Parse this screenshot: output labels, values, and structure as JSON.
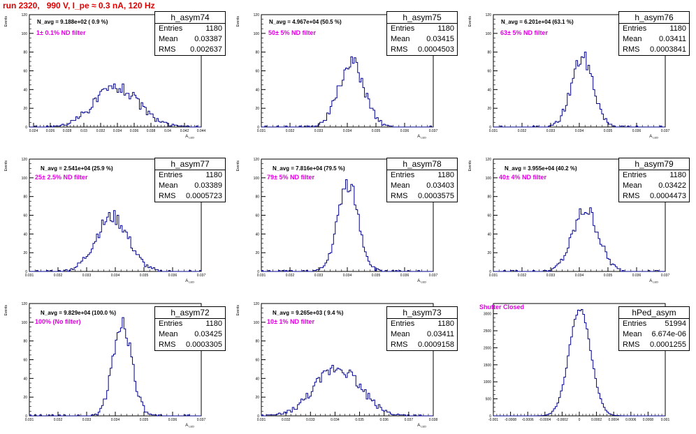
{
  "title": "run 2320,   990 V, I_pe ≈ 0.3 nA, 120 Hz",
  "chart_data": [
    {
      "type": "histogram",
      "name": "h_asym74",
      "stats": {
        "Entries": "1180",
        "Mean": "0.03387",
        "RMS": "0.002637"
      },
      "n_avg": "N_avg = 9.188e+02 ( 0.9 %)",
      "filter": "1± 0.1% ND filter",
      "ylabel": "Events",
      "xlabel": "A_LED",
      "xlim": [
        0.0235,
        0.044
      ],
      "ylim": [
        0,
        120
      ],
      "yticks": [
        0,
        20,
        40,
        60,
        80,
        100,
        120
      ],
      "xticks": [
        "0.024",
        "0.026",
        "0.028",
        "0.03",
        "0.032",
        "0.034",
        "0.036",
        "0.038",
        "0.04",
        "0.042",
        "0.044"
      ],
      "mean": 0.03387,
      "rms": 0.002637,
      "peak": 43,
      "entries": 1180,
      "seed": 74
    },
    {
      "type": "histogram",
      "name": "h_asym75",
      "stats": {
        "Entries": "1180",
        "Mean": "0.03415",
        "RMS": "0.0004503"
      },
      "n_avg": "N_avg = 4.967e+04 (50.5 %)",
      "filter": "50± 5% ND filter",
      "ylabel": "Events",
      "xlabel": "A_LED",
      "xlim": [
        0.031,
        0.037
      ],
      "ylim": [
        0,
        120
      ],
      "yticks": [
        0,
        20,
        40,
        60,
        80,
        100,
        120
      ],
      "xticks": [
        "0.031",
        "0.032",
        "0.033",
        "0.034",
        "0.035",
        "0.036",
        "0.037"
      ],
      "mean": 0.03415,
      "rms": 0.0004503,
      "peak": 68,
      "entries": 1180,
      "seed": 75
    },
    {
      "type": "histogram",
      "name": "h_asym76",
      "stats": {
        "Entries": "1180",
        "Mean": "0.03411",
        "RMS": "0.0003841"
      },
      "n_avg": "N_avg = 6.201e+04 (63.1 %)",
      "filter": "63± 5% ND filter",
      "ylabel": "Events",
      "xlabel": "A_LED",
      "xlim": [
        0.031,
        0.037
      ],
      "ylim": [
        0,
        120
      ],
      "yticks": [
        0,
        20,
        40,
        60,
        80,
        100,
        120
      ],
      "xticks": [
        "0.031",
        "0.032",
        "0.033",
        "0.034",
        "0.035",
        "0.036",
        "0.037"
      ],
      "mean": 0.03411,
      "rms": 0.0003841,
      "peak": 74,
      "entries": 1180,
      "seed": 76
    },
    {
      "type": "histogram",
      "name": "h_asym77",
      "stats": {
        "Entries": "1180",
        "Mean": "0.03389",
        "RMS": "0.0005723"
      },
      "n_avg": "N_avg = 2.541e+04 (25.9 %)",
      "filter": "25± 2.5% ND filter",
      "ylabel": "Events",
      "xlabel": "A_LED",
      "xlim": [
        0.031,
        0.037
      ],
      "ylim": [
        0,
        120
      ],
      "yticks": [
        0,
        20,
        40,
        60,
        80,
        100,
        120
      ],
      "xticks": [
        "0.031",
        "0.032",
        "0.033",
        "0.034",
        "0.035",
        "0.036",
        "0.037"
      ],
      "mean": 0.03389,
      "rms": 0.0005723,
      "peak": 58,
      "entries": 1180,
      "seed": 77
    },
    {
      "type": "histogram",
      "name": "h_asym78",
      "stats": {
        "Entries": "1180",
        "Mean": "0.03403",
        "RMS": "0.0003575"
      },
      "n_avg": "N_avg = 7.816e+04 (79.5 %)",
      "filter": "79± 5% ND filter",
      "ylabel": "Events",
      "xlabel": "A_LED",
      "xlim": [
        0.031,
        0.037
      ],
      "ylim": [
        0,
        120
      ],
      "yticks": [
        0,
        20,
        40,
        60,
        80,
        100,
        120
      ],
      "xticks": [
        "0.031",
        "0.032",
        "0.033",
        "0.034",
        "0.035",
        "0.036",
        "0.037"
      ],
      "mean": 0.03403,
      "rms": 0.0003575,
      "peak": 95,
      "entries": 1180,
      "seed": 78
    },
    {
      "type": "histogram",
      "name": "h_asym79",
      "stats": {
        "Entries": "1180",
        "Mean": "0.03422",
        "RMS": "0.0004473"
      },
      "n_avg": "N_avg = 3.955e+04 (40.2 %)",
      "filter": "40± 4% ND filter",
      "ylabel": "Events",
      "xlabel": "A_LED",
      "xlim": [
        0.031,
        0.037
      ],
      "ylim": [
        0,
        120
      ],
      "yticks": [
        0,
        20,
        40,
        60,
        80,
        100,
        120
      ],
      "xticks": [
        "0.031",
        "0.032",
        "0.033",
        "0.034",
        "0.035",
        "0.036",
        "0.037"
      ],
      "mean": 0.03422,
      "rms": 0.0004473,
      "peak": 66,
      "entries": 1180,
      "seed": 79
    },
    {
      "type": "histogram",
      "name": "h_asym72",
      "stats": {
        "Entries": "1180",
        "Mean": "0.03425",
        "RMS": "0.0003305"
      },
      "n_avg": "N_avg = 9.829e+04 (100.0 %)",
      "filter": "100% (No filter)",
      "ylabel": "Events",
      "xlabel": "A_LED",
      "xlim": [
        0.031,
        0.037
      ],
      "ylim": [
        0,
        120
      ],
      "yticks": [
        0,
        20,
        40,
        60,
        80,
        100,
        120
      ],
      "xticks": [
        "0.031",
        "0.032",
        "0.033",
        "0.034",
        "0.035",
        "0.036",
        "0.037"
      ],
      "mean": 0.03425,
      "rms": 0.0003305,
      "peak": 100,
      "entries": 1180,
      "seed": 72
    },
    {
      "type": "histogram",
      "name": "h_asym73",
      "stats": {
        "Entries": "1180",
        "Mean": "0.03411",
        "RMS": "0.0009158"
      },
      "n_avg": "N_avg = 9.265e+03 ( 9.4 %)",
      "filter": "10± 1% ND filter",
      "ylabel": "Events",
      "xlabel": "A_LED",
      "xlim": [
        0.031,
        0.038
      ],
      "ylim": [
        0,
        120
      ],
      "yticks": [
        0,
        20,
        40,
        60,
        80,
        100,
        120
      ],
      "xticks": [
        "0.031",
        "0.032",
        "0.033",
        "0.034",
        "0.035",
        "0.036",
        "0.037",
        "0.038"
      ],
      "mean": 0.03411,
      "rms": 0.0009158,
      "peak": 52,
      "entries": 1180,
      "seed": 73
    },
    {
      "type": "histogram",
      "name": "hPed_asym",
      "stats": {
        "Entries": "51994",
        "Mean": "6.674e-06",
        "RMS": "0.0001255"
      },
      "n_avg": "",
      "filter": "Shutter Closed",
      "ylabel": "",
      "xlabel": "",
      "xlim": [
        -0.001,
        0.001
      ],
      "ylim": [
        0,
        3300
      ],
      "yticks": [
        0,
        500,
        1000,
        1500,
        2000,
        2500,
        3000
      ],
      "xticks": [
        "-0.001",
        "-0.0008",
        "-0.0006",
        "-0.0004",
        "-0.0002",
        "0",
        "0.0002",
        "0.0004",
        "0.0006",
        "0.0008",
        "0.001"
      ],
      "mean": 6.7e-06,
      "rms": 0.0001255,
      "peak": 3150,
      "entries": 51994,
      "seed": 99
    }
  ]
}
